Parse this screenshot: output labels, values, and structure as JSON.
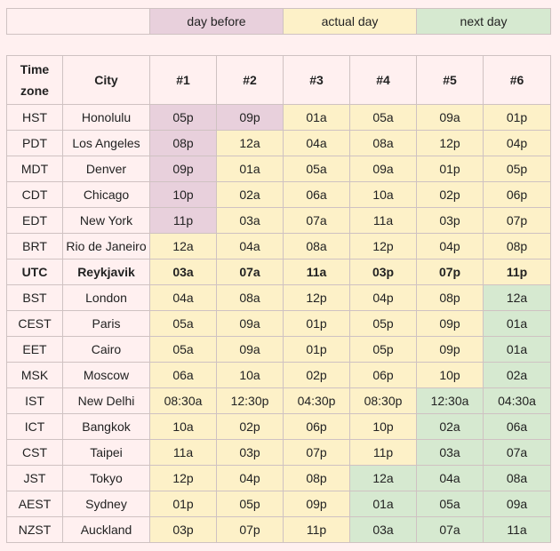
{
  "colors": {
    "before": "#e8d0dc",
    "actual": "#fdf1c8",
    "next": "#d6e9d0",
    "plain": "#fff0f0"
  },
  "legend": {
    "day_before": "day before",
    "actual_day": "actual day",
    "next_day": "next day"
  },
  "headers": [
    "Time zone",
    "City",
    "#1",
    "#2",
    "#3",
    "#4",
    "#5",
    "#6"
  ],
  "rows": [
    {
      "tz": "HST",
      "city": "Honolulu",
      "times": [
        "05p",
        "09p",
        "01a",
        "05a",
        "09a",
        "01p"
      ],
      "days": [
        "b",
        "b",
        "a",
        "a",
        "a",
        "a"
      ]
    },
    {
      "tz": "PDT",
      "city": "Los Angeles",
      "times": [
        "08p",
        "12a",
        "04a",
        "08a",
        "12p",
        "04p"
      ],
      "days": [
        "b",
        "a",
        "a",
        "a",
        "a",
        "a"
      ]
    },
    {
      "tz": "MDT",
      "city": "Denver",
      "times": [
        "09p",
        "01a",
        "05a",
        "09a",
        "01p",
        "05p"
      ],
      "days": [
        "b",
        "a",
        "a",
        "a",
        "a",
        "a"
      ]
    },
    {
      "tz": "CDT",
      "city": "Chicago",
      "times": [
        "10p",
        "02a",
        "06a",
        "10a",
        "02p",
        "06p"
      ],
      "days": [
        "b",
        "a",
        "a",
        "a",
        "a",
        "a"
      ]
    },
    {
      "tz": "EDT",
      "city": "New York",
      "times": [
        "11p",
        "03a",
        "07a",
        "11a",
        "03p",
        "07p"
      ],
      "days": [
        "b",
        "a",
        "a",
        "a",
        "a",
        "a"
      ]
    },
    {
      "tz": "BRT",
      "city": "Rio de Janeiro",
      "times": [
        "12a",
        "04a",
        "08a",
        "12p",
        "04p",
        "08p"
      ],
      "days": [
        "a",
        "a",
        "a",
        "a",
        "a",
        "a"
      ]
    },
    {
      "tz": "UTC",
      "city": "Reykjavik",
      "times": [
        "03a",
        "07a",
        "11a",
        "03p",
        "07p",
        "11p"
      ],
      "days": [
        "a",
        "a",
        "a",
        "a",
        "a",
        "a"
      ],
      "bold": true
    },
    {
      "tz": "BST",
      "city": "London",
      "times": [
        "04a",
        "08a",
        "12p",
        "04p",
        "08p",
        "12a"
      ],
      "days": [
        "a",
        "a",
        "a",
        "a",
        "a",
        "n"
      ]
    },
    {
      "tz": "CEST",
      "city": "Paris",
      "times": [
        "05a",
        "09a",
        "01p",
        "05p",
        "09p",
        "01a"
      ],
      "days": [
        "a",
        "a",
        "a",
        "a",
        "a",
        "n"
      ]
    },
    {
      "tz": "EET",
      "city": "Cairo",
      "times": [
        "05a",
        "09a",
        "01p",
        "05p",
        "09p",
        "01a"
      ],
      "days": [
        "a",
        "a",
        "a",
        "a",
        "a",
        "n"
      ]
    },
    {
      "tz": "MSK",
      "city": "Moscow",
      "times": [
        "06a",
        "10a",
        "02p",
        "06p",
        "10p",
        "02a"
      ],
      "days": [
        "a",
        "a",
        "a",
        "a",
        "a",
        "n"
      ]
    },
    {
      "tz": "IST",
      "city": "New Delhi",
      "times": [
        "08:30a",
        "12:30p",
        "04:30p",
        "08:30p",
        "12:30a",
        "04:30a"
      ],
      "days": [
        "a",
        "a",
        "a",
        "a",
        "n",
        "n"
      ]
    },
    {
      "tz": "ICT",
      "city": "Bangkok",
      "times": [
        "10a",
        "02p",
        "06p",
        "10p",
        "02a",
        "06a"
      ],
      "days": [
        "a",
        "a",
        "a",
        "a",
        "n",
        "n"
      ]
    },
    {
      "tz": "CST",
      "city": "Taipei",
      "times": [
        "11a",
        "03p",
        "07p",
        "11p",
        "03a",
        "07a"
      ],
      "days": [
        "a",
        "a",
        "a",
        "a",
        "n",
        "n"
      ]
    },
    {
      "tz": "JST",
      "city": "Tokyo",
      "times": [
        "12p",
        "04p",
        "08p",
        "12a",
        "04a",
        "08a"
      ],
      "days": [
        "a",
        "a",
        "a",
        "n",
        "n",
        "n"
      ]
    },
    {
      "tz": "AEST",
      "city": "Sydney",
      "times": [
        "01p",
        "05p",
        "09p",
        "01a",
        "05a",
        "09a"
      ],
      "days": [
        "a",
        "a",
        "a",
        "n",
        "n",
        "n"
      ]
    },
    {
      "tz": "NZST",
      "city": "Auckland",
      "times": [
        "03p",
        "07p",
        "11p",
        "03a",
        "07a",
        "11a"
      ],
      "days": [
        "a",
        "a",
        "a",
        "n",
        "n",
        "n"
      ]
    }
  ]
}
